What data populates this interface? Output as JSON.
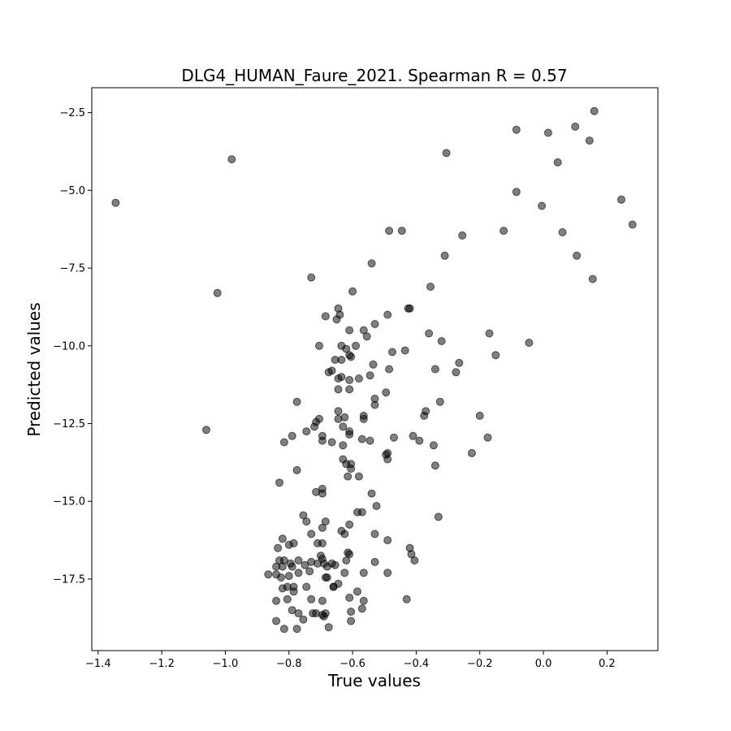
{
  "chart_data": {
    "type": "scatter",
    "title": "DLG4_HUMAN_Faure_2021. Spearman R = 0.57",
    "xlabel": "True values",
    "ylabel": "Predicted values",
    "xlim": [
      -1.42,
      0.36
    ],
    "ylim": [
      -19.8,
      -1.7
    ],
    "xticks": [
      -1.4,
      -1.2,
      -1.0,
      -0.8,
      -0.6,
      -0.4,
      -0.2,
      0.0,
      0.2
    ],
    "xtick_labels": [
      "−1.4",
      "−1.2",
      "−1.0",
      "−0.8",
      "−0.6",
      "−0.4",
      "−0.2",
      "0.0",
      "0.2"
    ],
    "yticks": [
      -2.5,
      -5.0,
      -7.5,
      -10.0,
      -12.5,
      -15.0,
      -17.5
    ],
    "ytick_labels": [
      "−2.5",
      "−5.0",
      "−7.5",
      "−10.0",
      "−12.5",
      "−15.0",
      "−17.5"
    ],
    "grid": false,
    "marker_color": "#000000",
    "points": [
      [
        -1.345,
        -5.4
      ],
      [
        -0.98,
        -4.0
      ],
      [
        -1.025,
        -8.3
      ],
      [
        -1.06,
        -12.7
      ],
      [
        0.16,
        -2.45
      ],
      [
        0.1,
        -2.95
      ],
      [
        0.145,
        -3.4
      ],
      [
        -0.085,
        -3.05
      ],
      [
        0.015,
        -3.15
      ],
      [
        0.045,
        -4.1
      ],
      [
        -0.305,
        -3.8
      ],
      [
        -0.085,
        -5.05
      ],
      [
        -0.005,
        -5.5
      ],
      [
        0.245,
        -5.3
      ],
      [
        0.28,
        -6.1
      ],
      [
        0.06,
        -6.35
      ],
      [
        -0.125,
        -6.3
      ],
      [
        -0.255,
        -6.45
      ],
      [
        -0.445,
        -6.3
      ],
      [
        -0.485,
        -6.3
      ],
      [
        -0.31,
        -7.1
      ],
      [
        0.105,
        -7.1
      ],
      [
        0.155,
        -7.85
      ],
      [
        -0.54,
        -7.35
      ],
      [
        -0.73,
        -7.8
      ],
      [
        -0.6,
        -8.25
      ],
      [
        -0.355,
        -8.1
      ],
      [
        -0.045,
        -9.9
      ],
      [
        -0.17,
        -9.6
      ],
      [
        -0.15,
        -10.3
      ],
      [
        -0.265,
        -10.55
      ],
      [
        -0.275,
        -10.85
      ],
      [
        -0.34,
        -10.75
      ],
      [
        -0.32,
        -9.85
      ],
      [
        -0.36,
        -9.6
      ],
      [
        -0.435,
        -10.15
      ],
      [
        -0.475,
        -10.2
      ],
      [
        -0.485,
        -10.75
      ],
      [
        -0.425,
        -8.8
      ],
      [
        -0.42,
        -8.8
      ],
      [
        -0.49,
        -9.0
      ],
      [
        -0.53,
        -9.3
      ],
      [
        -0.645,
        -8.8
      ],
      [
        -0.64,
        -9.0
      ],
      [
        -0.65,
        -9.15
      ],
      [
        -0.685,
        -9.05
      ],
      [
        -0.61,
        -9.5
      ],
      [
        -0.565,
        -9.5
      ],
      [
        -0.555,
        -9.7
      ],
      [
        -0.705,
        -10.0
      ],
      [
        -0.635,
        -10.0
      ],
      [
        -0.59,
        -10.0
      ],
      [
        -0.62,
        -10.1
      ],
      [
        -0.61,
        -10.3
      ],
      [
        -0.605,
        -10.35
      ],
      [
        -0.655,
        -10.45
      ],
      [
        -0.635,
        -10.45
      ],
      [
        -0.665,
        -10.8
      ],
      [
        -0.675,
        -10.85
      ],
      [
        -0.535,
        -10.6
      ],
      [
        -0.645,
        -11.05
      ],
      [
        -0.635,
        -11.0
      ],
      [
        -0.61,
        -11.1
      ],
      [
        -0.58,
        -11.05
      ],
      [
        -0.545,
        -10.95
      ],
      [
        -0.61,
        -11.4
      ],
      [
        -0.645,
        -11.4
      ],
      [
        -0.53,
        -11.7
      ],
      [
        -0.53,
        -11.9
      ],
      [
        -0.495,
        -11.5
      ],
      [
        -0.325,
        -11.8
      ],
      [
        -0.37,
        -12.1
      ],
      [
        -0.375,
        -12.25
      ],
      [
        -0.2,
        -12.25
      ],
      [
        -0.175,
        -12.95
      ],
      [
        -0.225,
        -13.45
      ],
      [
        -0.345,
        -13.2
      ],
      [
        -0.39,
        -13.05
      ],
      [
        -0.41,
        -12.9
      ],
      [
        -0.47,
        -12.95
      ],
      [
        -0.49,
        -13.45
      ],
      [
        -0.49,
        -13.65
      ],
      [
        -0.495,
        -13.5
      ],
      [
        -0.34,
        -13.85
      ],
      [
        -0.33,
        -15.5
      ],
      [
        -0.775,
        -11.8
      ],
      [
        -0.705,
        -12.35
      ],
      [
        -0.715,
        -12.45
      ],
      [
        -0.72,
        -12.6
      ],
      [
        -0.745,
        -12.75
      ],
      [
        -0.645,
        -12.1
      ],
      [
        -0.645,
        -12.35
      ],
      [
        -0.625,
        -12.3
      ],
      [
        -0.565,
        -12.25
      ],
      [
        -0.565,
        -12.35
      ],
      [
        -0.63,
        -12.6
      ],
      [
        -0.61,
        -12.75
      ],
      [
        -0.61,
        -12.85
      ],
      [
        -0.79,
        -12.9
      ],
      [
        -0.815,
        -13.1
      ],
      [
        -0.695,
        -12.9
      ],
      [
        -0.695,
        -13.05
      ],
      [
        -0.665,
        -13.1
      ],
      [
        -0.63,
        -13.2
      ],
      [
        -0.57,
        -13.0
      ],
      [
        -0.545,
        -13.05
      ],
      [
        -0.63,
        -13.65
      ],
      [
        -0.605,
        -13.8
      ],
      [
        -0.62,
        -13.8
      ],
      [
        -0.605,
        -13.95
      ],
      [
        -0.58,
        -14.2
      ],
      [
        -0.615,
        -14.2
      ],
      [
        -0.775,
        -14.0
      ],
      [
        -0.83,
        -14.4
      ],
      [
        -0.695,
        -14.6
      ],
      [
        -0.715,
        -14.7
      ],
      [
        -0.695,
        -14.75
      ],
      [
        -0.54,
        -14.75
      ],
      [
        -0.525,
        -15.15
      ],
      [
        -0.585,
        -15.35
      ],
      [
        -0.57,
        -15.35
      ],
      [
        -0.755,
        -15.45
      ],
      [
        -0.745,
        -15.65
      ],
      [
        -0.685,
        -15.65
      ],
      [
        -0.61,
        -15.75
      ],
      [
        -0.695,
        -15.85
      ],
      [
        -0.635,
        -15.95
      ],
      [
        -0.625,
        -16.05
      ],
      [
        -0.73,
        -16.05
      ],
      [
        -0.53,
        -16.05
      ],
      [
        -0.49,
        -16.25
      ],
      [
        -0.82,
        -16.2
      ],
      [
        -0.785,
        -16.35
      ],
      [
        -0.8,
        -16.4
      ],
      [
        -0.71,
        -16.35
      ],
      [
        -0.695,
        -16.35
      ],
      [
        -0.835,
        -16.5
      ],
      [
        -0.615,
        -16.65
      ],
      [
        -0.61,
        -16.7
      ],
      [
        -0.42,
        -16.5
      ],
      [
        -0.415,
        -16.7
      ],
      [
        -0.405,
        -16.9
      ],
      [
        -0.7,
        -16.75
      ],
      [
        -0.695,
        -16.85
      ],
      [
        -0.83,
        -16.9
      ],
      [
        -0.815,
        -16.9
      ],
      [
        -0.795,
        -17.0
      ],
      [
        -0.77,
        -16.9
      ],
      [
        -0.73,
        -16.95
      ],
      [
        -0.69,
        -17.0
      ],
      [
        -0.71,
        -17.0
      ],
      [
        -0.665,
        -17.0
      ],
      [
        -0.62,
        -16.9
      ],
      [
        -0.53,
        -16.95
      ],
      [
        -0.84,
        -17.1
      ],
      [
        -0.82,
        -17.1
      ],
      [
        -0.79,
        -17.1
      ],
      [
        -0.75,
        -17.05
      ],
      [
        -0.68,
        -17.1
      ],
      [
        -0.655,
        -17.05
      ],
      [
        -0.625,
        -17.3
      ],
      [
        -0.565,
        -17.3
      ],
      [
        -0.49,
        -17.3
      ],
      [
        -0.865,
        -17.35
      ],
      [
        -0.84,
        -17.35
      ],
      [
        -0.825,
        -17.45
      ],
      [
        -0.8,
        -17.4
      ],
      [
        -0.77,
        -17.3
      ],
      [
        -0.735,
        -17.25
      ],
      [
        -0.685,
        -17.45
      ],
      [
        -0.68,
        -17.45
      ],
      [
        -0.645,
        -17.65
      ],
      [
        -0.66,
        -17.75
      ],
      [
        -0.66,
        -17.75
      ],
      [
        -0.82,
        -17.8
      ],
      [
        -0.805,
        -17.75
      ],
      [
        -0.785,
        -17.75
      ],
      [
        -0.745,
        -17.75
      ],
      [
        -0.785,
        -17.9
      ],
      [
        -0.585,
        -17.9
      ],
      [
        -0.84,
        -18.2
      ],
      [
        -0.805,
        -18.15
      ],
      [
        -0.73,
        -18.15
      ],
      [
        -0.695,
        -18.2
      ],
      [
        -0.61,
        -18.1
      ],
      [
        -0.565,
        -18.2
      ],
      [
        -0.43,
        -18.15
      ],
      [
        -0.79,
        -18.5
      ],
      [
        -0.77,
        -18.6
      ],
      [
        -0.725,
        -18.6
      ],
      [
        -0.715,
        -18.6
      ],
      [
        -0.695,
        -18.65
      ],
      [
        -0.685,
        -18.6
      ],
      [
        -0.69,
        -18.7
      ],
      [
        -0.605,
        -18.55
      ],
      [
        -0.57,
        -18.45
      ],
      [
        -0.755,
        -18.8
      ],
      [
        -0.84,
        -18.85
      ],
      [
        -0.605,
        -18.85
      ],
      [
        -0.815,
        -19.1
      ],
      [
        -0.775,
        -19.1
      ],
      [
        -0.675,
        -19.05
      ]
    ]
  }
}
